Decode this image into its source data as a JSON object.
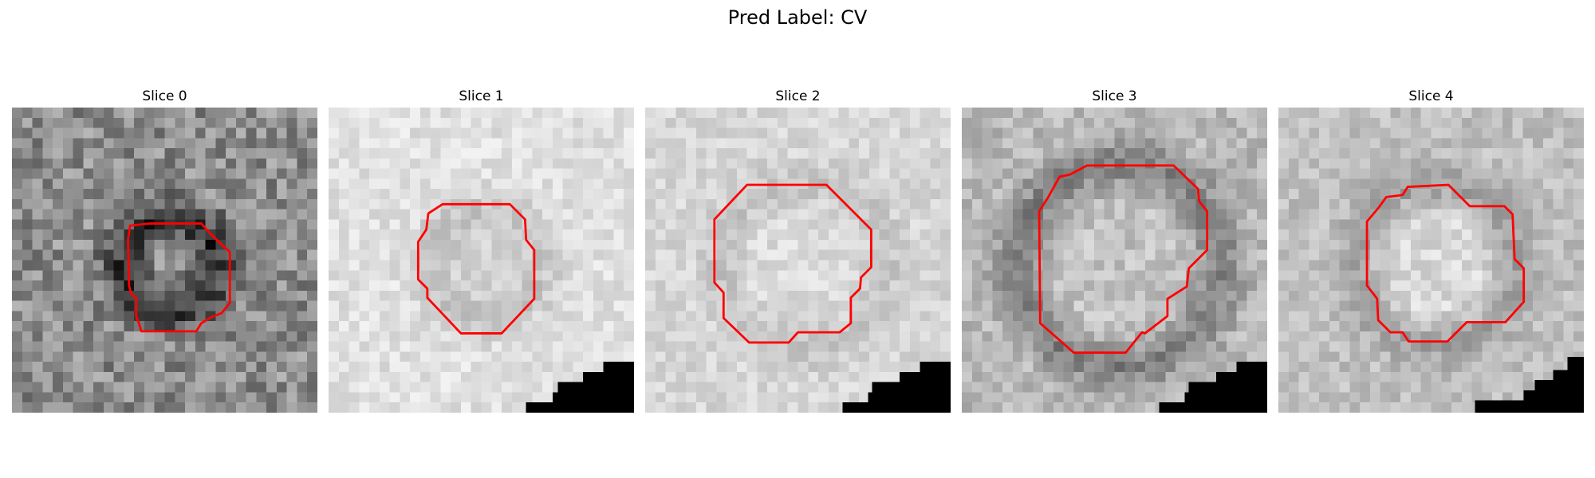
{
  "figure": {
    "suptitle": "Pred Label: CV",
    "overlay_color": "#ff0000",
    "colormap": "grayscale",
    "panels": [
      {
        "title": "Slice 0",
        "base": 0.55,
        "center": 0.55,
        "ring": 0.18,
        "ring_width": 0.11,
        "ring_radius": 0.15,
        "noise": 0.34,
        "lesion": [
          0.25,
          0.19,
          0.2,
          0.07,
          0.33,
          0.04,
          0.34,
          0.72
        ]
      },
      {
        "title": "Slice 1",
        "base": 0.88,
        "center": 0.83,
        "ring": 0.76,
        "ring_width": 0.1,
        "ring_radius": 0.18,
        "noise": 0.14,
        "lesion": [
          0.22,
          0.18,
          0.2,
          0.1,
          0.23,
          0.13,
          0.26,
          0.68
        ]
      },
      {
        "title": "Slice 2",
        "base": 0.84,
        "center": 0.86,
        "ring": 0.76,
        "ring_width": 0.1,
        "ring_radius": 0.27,
        "noise": 0.14,
        "lesion": [
          0.26,
          0.19,
          0.19,
          0.12,
          0.21,
          0.16,
          0.29,
          0.7
        ]
      },
      {
        "title": "Slice 3",
        "base": 0.72,
        "center": 0.76,
        "ring": 0.48,
        "ring_width": 0.12,
        "ring_radius": 0.33,
        "noise": 0.2,
        "lesion": [
          0.32,
          0.23,
          0.2,
          0.15,
          0.33,
          0.22,
          0.35,
          0.72
        ]
      },
      {
        "title": "Slice 4",
        "base": 0.75,
        "center": 0.85,
        "ring": 0.62,
        "ring_width": 0.11,
        "ring_radius": 0.26,
        "noise": 0.17,
        "lesion": [
          0.28,
          0.22,
          0.25,
          0.14,
          0.3,
          0.2,
          0.32,
          0.7
        ]
      }
    ]
  }
}
